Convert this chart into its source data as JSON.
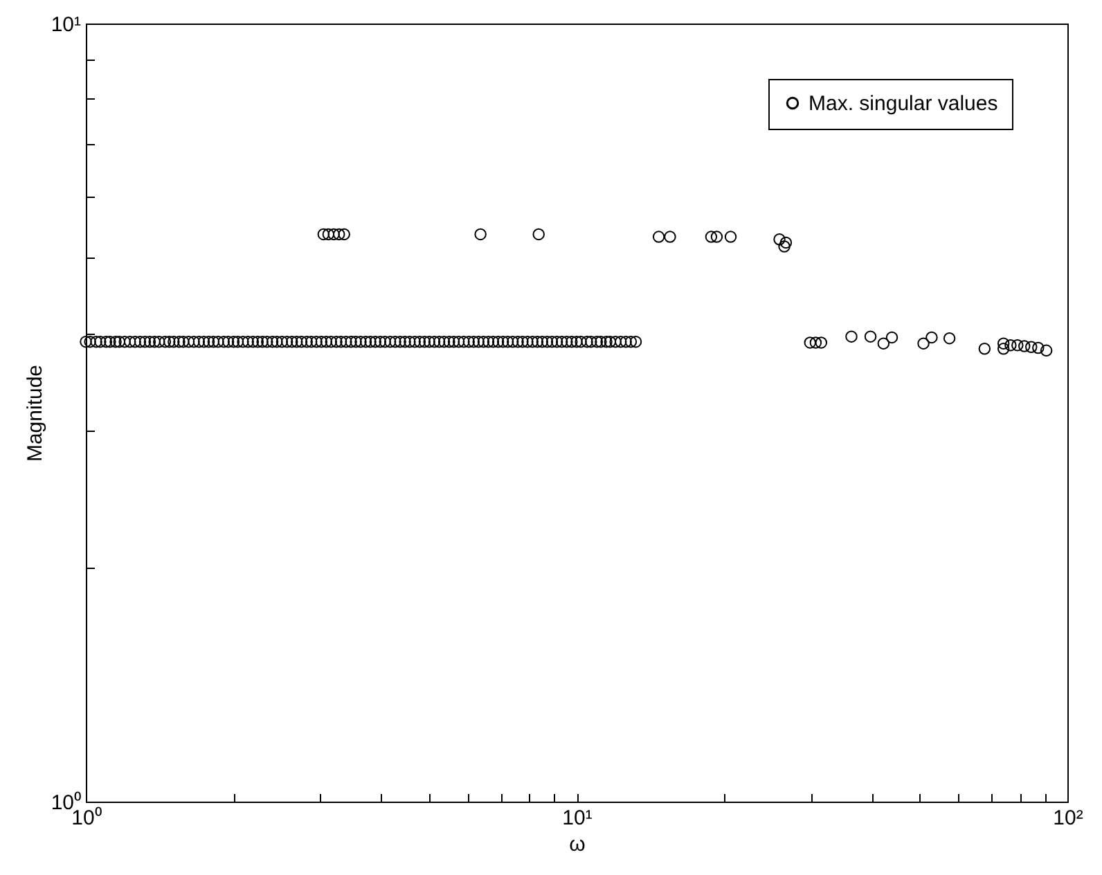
{
  "chart_data": {
    "type": "scatter",
    "xlabel": "ω",
    "ylabel": "Magnitude",
    "log": "xy",
    "marker": "circle",
    "legend": "top right",
    "grid": false,
    "xlim": [
      1,
      100
    ],
    "ylim": [
      1,
      10
    ],
    "xticks": [
      {
        "value": 1,
        "label": "10⁰"
      },
      {
        "value": 2,
        "label": null
      },
      {
        "value": 3,
        "label": null
      },
      {
        "value": 4,
        "label": null
      },
      {
        "value": 5,
        "label": null
      },
      {
        "value": 6,
        "label": null
      },
      {
        "value": 7,
        "label": null
      },
      {
        "value": 8,
        "label": null
      },
      {
        "value": 9,
        "label": null
      },
      {
        "value": 10,
        "label": "10¹"
      },
      {
        "value": 20,
        "label": null
      },
      {
        "value": 30,
        "label": null
      },
      {
        "value": 40,
        "label": null
      },
      {
        "value": 50,
        "label": null
      },
      {
        "value": 60,
        "label": null
      },
      {
        "value": 70,
        "label": null
      },
      {
        "value": 80,
        "label": null
      },
      {
        "value": 90,
        "label": null
      },
      {
        "value": 100,
        "label": "10²"
      }
    ],
    "yticks": [
      {
        "value": 1,
        "label": "10⁰"
      },
      {
        "value": 2,
        "label": null
      },
      {
        "value": 3,
        "label": null
      },
      {
        "value": 4,
        "label": null
      },
      {
        "value": 5,
        "label": null
      },
      {
        "value": 6,
        "label": null
      },
      {
        "value": 7,
        "label": null
      },
      {
        "value": 8,
        "label": null
      },
      {
        "value": 9,
        "label": null
      },
      {
        "value": 10,
        "label": "10¹"
      }
    ],
    "series": [
      {
        "name": "Max. singular values",
        "color": "#000000",
        "x": [
          1,
          1.02,
          1.05,
          1.07,
          1.1,
          1.12,
          1.15,
          1.17,
          1.2,
          1.23,
          1.26,
          1.29,
          1.32,
          1.35,
          1.38,
          1.41,
          1.45,
          1.48,
          1.51,
          1.55,
          1.58,
          1.62,
          1.66,
          1.7,
          1.74,
          1.78,
          1.82,
          1.86,
          1.91,
          1.95,
          2.0,
          2.04,
          2.09,
          2.14,
          2.19,
          2.24,
          2.29,
          2.34,
          2.4,
          2.45,
          2.51,
          2.57,
          2.63,
          2.69,
          2.75,
          2.82,
          2.88,
          2.95,
          3.02,
          3.09,
          3.16,
          3.24,
          3.31,
          3.39,
          3.47,
          3.55,
          3.63,
          3.72,
          3.8,
          3.89,
          3.98,
          4.07,
          4.17,
          4.27,
          4.37,
          4.47,
          4.57,
          4.68,
          4.79,
          4.9,
          5.01,
          5.13,
          5.25,
          5.37,
          5.5,
          5.62,
          5.75,
          5.89,
          6.03,
          6.17,
          6.31,
          6.46,
          6.61,
          6.76,
          6.92,
          7.08,
          7.24,
          7.41,
          7.59,
          7.76,
          7.94,
          8.13,
          8.32,
          8.51,
          8.71,
          8.91,
          9.12,
          9.33,
          9.55,
          9.77,
          10.0,
          10.2,
          10.5,
          10.7,
          11.0,
          11.2,
          11.5,
          11.7,
          12.0,
          12.3,
          12.6,
          12.9,
          13.2,
          3.05,
          3.12,
          3.2,
          3.28,
          3.36,
          6.37,
          8.37,
          14.7,
          15.5,
          18.8,
          19.3,
          20.6,
          25.9,
          26.7,
          26.5,
          29.9,
          30.7,
          31.5,
          36.3,
          39.7,
          42.2,
          43.9,
          50.9,
          52.9,
          57.5,
          67.8,
          74.1,
          74.1,
          76.6,
          79.1,
          81.7,
          84.4,
          87.2,
          90.6
        ],
        "values": [
          3.9,
          3.9,
          3.9,
          3.9,
          3.9,
          3.9,
          3.9,
          3.9,
          3.9,
          3.9,
          3.9,
          3.9,
          3.9,
          3.9,
          3.9,
          3.9,
          3.9,
          3.9,
          3.9,
          3.9,
          3.9,
          3.9,
          3.9,
          3.9,
          3.9,
          3.9,
          3.9,
          3.9,
          3.9,
          3.9,
          3.9,
          3.9,
          3.9,
          3.9,
          3.9,
          3.9,
          3.9,
          3.9,
          3.9,
          3.9,
          3.9,
          3.9,
          3.9,
          3.9,
          3.9,
          3.9,
          3.9,
          3.9,
          3.9,
          3.9,
          3.9,
          3.9,
          3.9,
          3.9,
          3.9,
          3.9,
          3.9,
          3.9,
          3.9,
          3.9,
          3.9,
          3.9,
          3.9,
          3.9,
          3.9,
          3.9,
          3.9,
          3.9,
          3.9,
          3.9,
          3.9,
          3.9,
          3.9,
          3.9,
          3.9,
          3.9,
          3.9,
          3.9,
          3.9,
          3.9,
          3.9,
          3.9,
          3.9,
          3.9,
          3.9,
          3.9,
          3.9,
          3.9,
          3.9,
          3.9,
          3.9,
          3.9,
          3.9,
          3.9,
          3.9,
          3.9,
          3.9,
          3.9,
          3.9,
          3.9,
          3.9,
          3.9,
          3.9,
          3.9,
          3.9,
          3.9,
          3.9,
          3.9,
          3.9,
          3.9,
          3.9,
          3.9,
          3.9,
          5.36,
          5.36,
          5.36,
          5.36,
          5.36,
          5.36,
          5.36,
          5.32,
          5.32,
          5.32,
          5.32,
          5.32,
          5.28,
          5.23,
          5.17,
          3.89,
          3.89,
          3.89,
          3.96,
          3.96,
          3.88,
          3.95,
          3.88,
          3.95,
          3.94,
          3.82,
          3.88,
          3.82,
          3.86,
          3.86,
          3.85,
          3.84,
          3.83,
          3.8
        ]
      }
    ]
  }
}
